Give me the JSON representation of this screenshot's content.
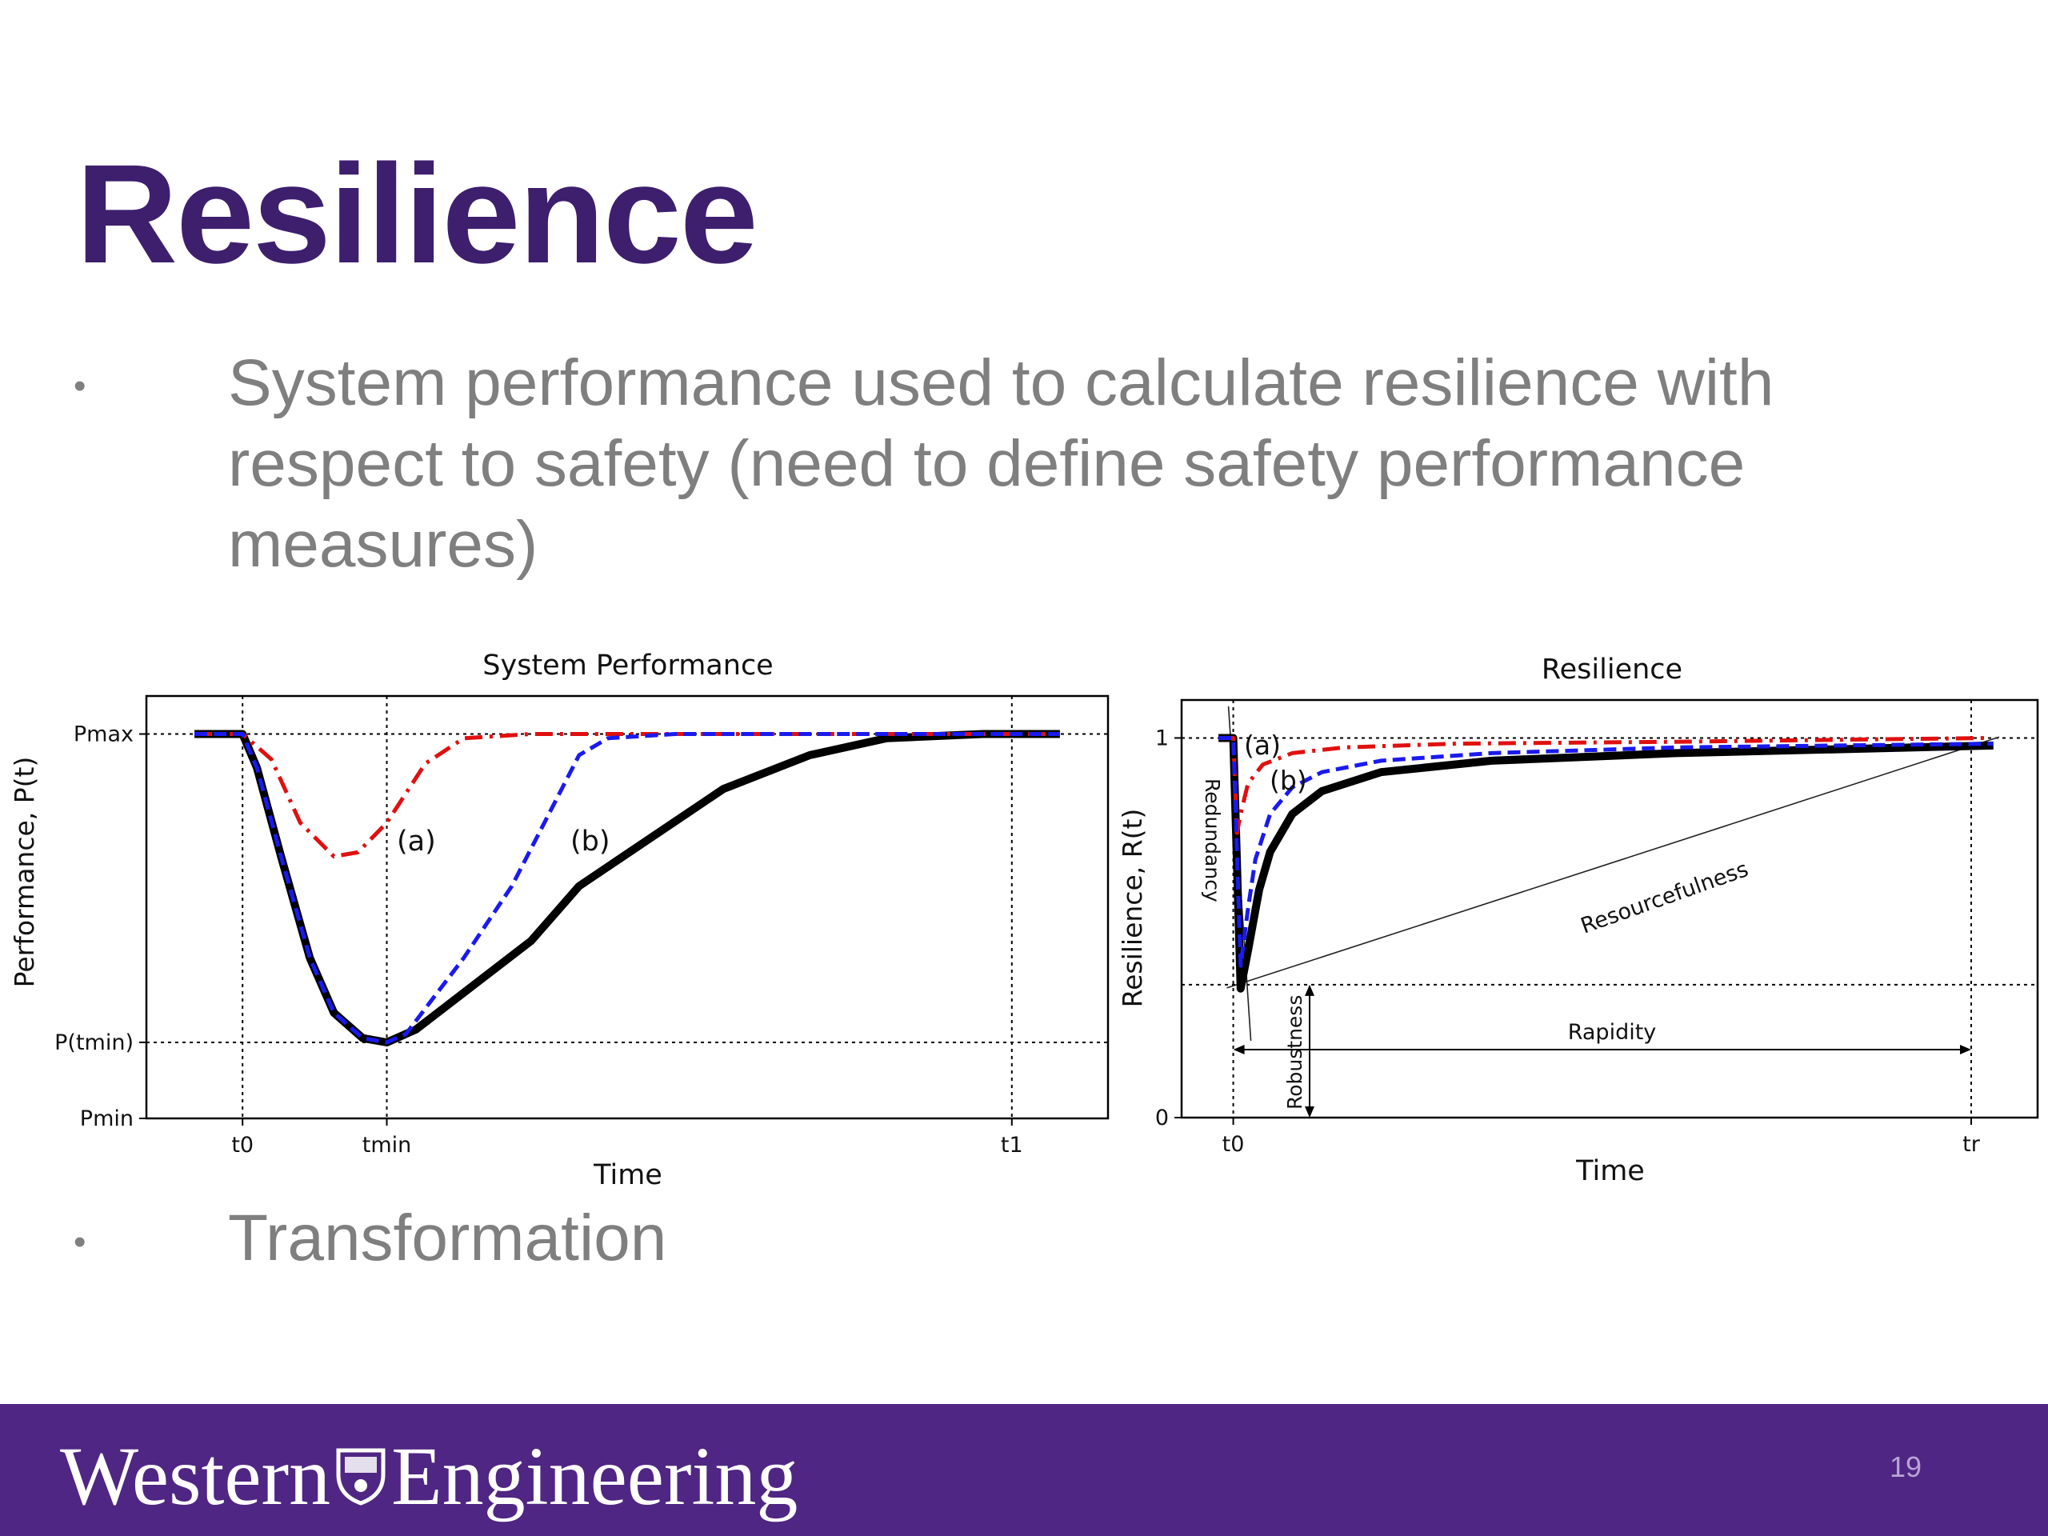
{
  "slide": {
    "title": "Resilience",
    "bullets": [
      "System performance used to calculate resilience with respect to safety (need to define safety performance measures)",
      "Transformation"
    ],
    "bullet_marker": "•",
    "page_number": "19"
  },
  "footer": {
    "brand_left": "Western",
    "brand_right": "Engineering",
    "crest_icon": "western-crest-icon",
    "background": "#4f2683"
  },
  "colors": {
    "title": "#3d1f6e",
    "body_text": "#7f7f7f",
    "series_a": "#e01010",
    "series_b": "#1a1aee",
    "series_base": "#000000"
  },
  "chart_data": [
    {
      "type": "line",
      "title": "System Performance",
      "xlabel": "Time",
      "ylabel": "Performance, P(t)",
      "x_ticks": [
        {
          "label": "t0",
          "value": 0.15
        },
        {
          "label": "tmin",
          "value": 0.3
        },
        {
          "label": "t1",
          "value": 0.95
        }
      ],
      "y_ticks": [
        {
          "label": "Pmin",
          "value": 0
        },
        {
          "label": "P(tmin)",
          "value": 0.18
        },
        {
          "label": "Pmax",
          "value": 0.91
        }
      ],
      "xlim": [
        0.05,
        1.05
      ],
      "ylim": [
        0,
        1
      ],
      "grid": "dotted reference lines at ticks",
      "annotations": [
        "(a)",
        "(b)"
      ],
      "series": [
        {
          "label": "(a)",
          "style": "dash-dot",
          "points": [
            [
              0.1,
              0.91
            ],
            [
              0.15,
              0.91
            ],
            [
              0.18,
              0.85
            ],
            [
              0.21,
              0.7
            ],
            [
              0.245,
              0.62
            ],
            [
              0.27,
              0.63
            ],
            [
              0.3,
              0.7
            ],
            [
              0.34,
              0.84
            ],
            [
              0.38,
              0.9
            ],
            [
              0.45,
              0.91
            ],
            [
              1.0,
              0.91
            ]
          ]
        },
        {
          "label": "(b)",
          "style": "dashed",
          "points": [
            [
              0.1,
              0.91
            ],
            [
              0.15,
              0.91
            ],
            [
              0.165,
              0.83
            ],
            [
              0.19,
              0.62
            ],
            [
              0.22,
              0.38
            ],
            [
              0.245,
              0.25
            ],
            [
              0.275,
              0.19
            ],
            [
              0.3,
              0.18
            ],
            [
              0.32,
              0.2
            ],
            [
              0.38,
              0.38
            ],
            [
              0.43,
              0.55
            ],
            [
              0.5,
              0.86
            ],
            [
              0.53,
              0.9
            ],
            [
              0.6,
              0.91
            ],
            [
              1.0,
              0.91
            ]
          ]
        },
        {
          "label": "",
          "style": "solid",
          "points": [
            [
              0.1,
              0.91
            ],
            [
              0.15,
              0.91
            ],
            [
              0.165,
              0.83
            ],
            [
              0.19,
              0.62
            ],
            [
              0.22,
              0.38
            ],
            [
              0.245,
              0.25
            ],
            [
              0.275,
              0.19
            ],
            [
              0.3,
              0.18
            ],
            [
              0.33,
              0.21
            ],
            [
              0.45,
              0.42
            ],
            [
              0.5,
              0.55
            ],
            [
              0.65,
              0.78
            ],
            [
              0.74,
              0.86
            ],
            [
              0.82,
              0.9
            ],
            [
              0.92,
              0.91
            ],
            [
              1.0,
              0.91
            ]
          ]
        }
      ]
    },
    {
      "type": "line",
      "title": "Resilience",
      "xlabel": "Time",
      "ylabel": "Resilience, R(t)",
      "x_ticks": [
        {
          "label": "t0",
          "value": 0
        },
        {
          "label": "tr",
          "value": 1
        }
      ],
      "y_ticks": [
        {
          "label": "0",
          "value": 0
        },
        {
          "label": "1",
          "value": 1
        }
      ],
      "xlim": [
        -0.07,
        1.09
      ],
      "ylim": [
        0,
        1.1
      ],
      "annotations": [
        "(a)",
        "(b)",
        "Redundancy",
        "Robustness",
        "Rapidity",
        "Resourcefulness"
      ],
      "series": [
        {
          "label": "(a)",
          "style": "dash-dot",
          "points": [
            [
              -0.02,
              1
            ],
            [
              0,
              1
            ],
            [
              0.005,
              0.75
            ],
            [
              0.01,
              0.8
            ],
            [
              0.02,
              0.88
            ],
            [
              0.04,
              0.93
            ],
            [
              0.08,
              0.96
            ],
            [
              0.15,
              0.975
            ],
            [
              0.3,
              0.985
            ],
            [
              0.6,
              0.99
            ],
            [
              1.02,
              1.0
            ]
          ]
        },
        {
          "label": "(b)",
          "style": "dashed",
          "points": [
            [
              -0.02,
              1
            ],
            [
              0,
              1
            ],
            [
              0.01,
              0.4
            ],
            [
              0.02,
              0.55
            ],
            [
              0.03,
              0.68
            ],
            [
              0.05,
              0.8
            ],
            [
              0.08,
              0.87
            ],
            [
              0.12,
              0.91
            ],
            [
              0.2,
              0.94
            ],
            [
              0.35,
              0.96
            ],
            [
              0.6,
              0.975
            ],
            [
              1.03,
              0.985
            ]
          ]
        },
        {
          "label": "",
          "style": "solid",
          "points": [
            [
              -0.02,
              1
            ],
            [
              0,
              1
            ],
            [
              0.01,
              0.34
            ],
            [
              0.02,
              0.44
            ],
            [
              0.035,
              0.6
            ],
            [
              0.05,
              0.7
            ],
            [
              0.08,
              0.8
            ],
            [
              0.12,
              0.86
            ],
            [
              0.2,
              0.91
            ],
            [
              0.35,
              0.94
            ],
            [
              0.6,
              0.96
            ],
            [
              1.03,
              0.98
            ]
          ]
        }
      ],
      "reference_lines": {
        "hline_value": 0.35,
        "resourcefulness_from": [
          0,
          0.35
        ],
        "resourcefulness_to": [
          1,
          0.99
        ]
      }
    }
  ]
}
